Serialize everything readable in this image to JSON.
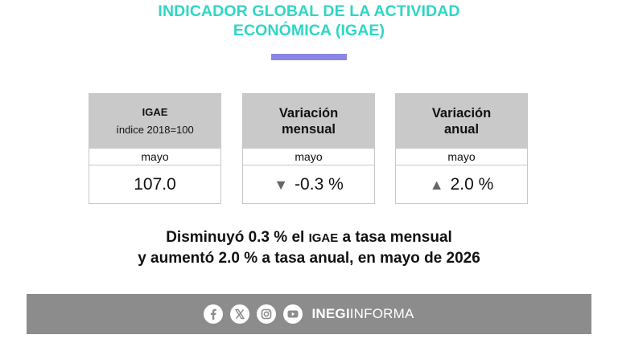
{
  "header": {
    "title_line1": "INDICADOR GLOBAL DE LA ACTIVIDAD",
    "title_line2": "ECONÓMICA (IGAE)",
    "accent_color": "#2fd6c6",
    "bar_color": "#8b86e6"
  },
  "cards": [
    {
      "title": "IGAE",
      "subtitle": "índice 2018=100",
      "period": "mayo",
      "value": "107.0"
    },
    {
      "title_line1": "Variación",
      "title_line2": "mensual",
      "period": "mayo",
      "direction": "down",
      "arrow": "▼",
      "value": "-0.3 %"
    },
    {
      "title_line1": "Variación",
      "title_line2": "anual",
      "period": "mayo",
      "direction": "up",
      "arrow": "▲",
      "value": "2.0 %"
    }
  ],
  "summary": {
    "line1_pre": "Disminuyó 0.3 % el ",
    "line1_abbr": "IGAE",
    "line1_post": " a tasa mensual",
    "line2": "y aumentó 2.0 % a tasa anual, en mayo de 2026"
  },
  "footer": {
    "icons": [
      "facebook-icon",
      "x-icon",
      "instagram-icon",
      "youtube-icon"
    ],
    "brand_bold": "INEGI",
    "brand_regular": "INFORMA",
    "background_color": "#8c8c8c"
  }
}
